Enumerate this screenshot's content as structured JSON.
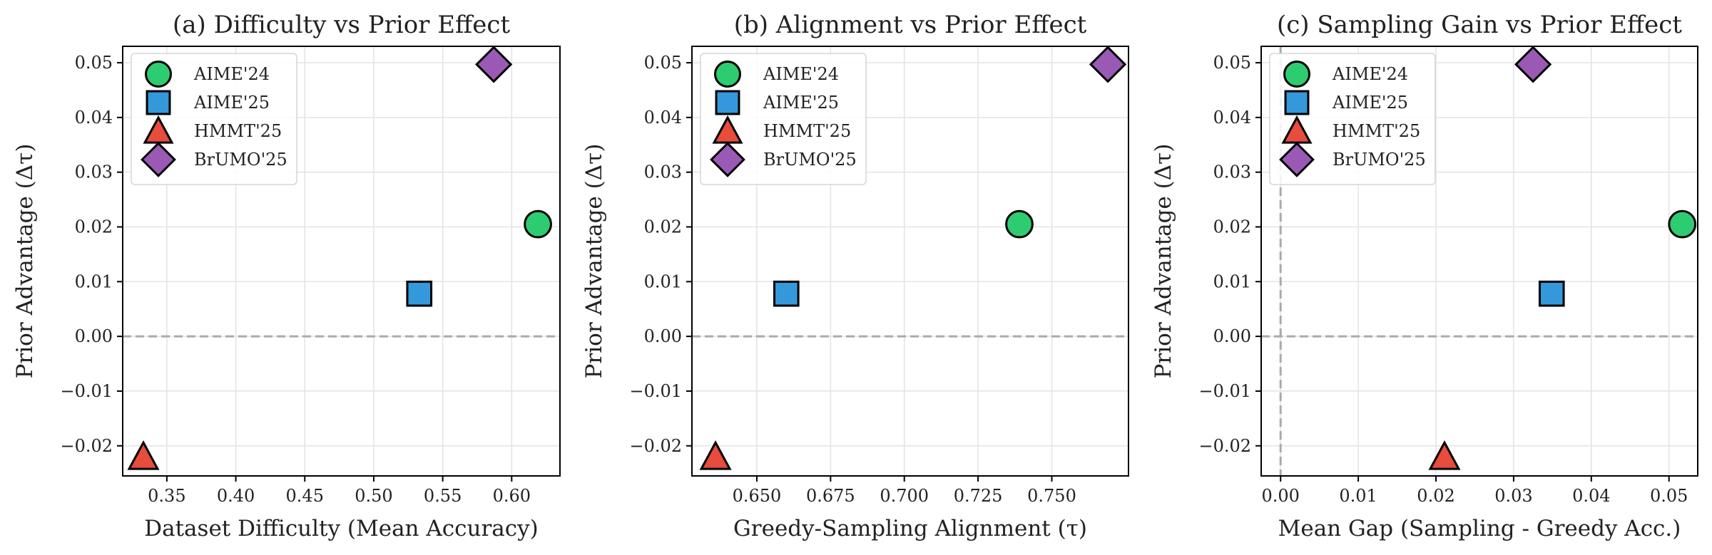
{
  "legend": {
    "position": "upper-left",
    "entries": [
      {
        "label": "AIME'24",
        "color": "#2ecc71",
        "marker": "circle"
      },
      {
        "label": "AIME'25",
        "color": "#3498db",
        "marker": "square"
      },
      {
        "label": "HMMT'25",
        "color": "#e74c3c",
        "marker": "triangle"
      },
      {
        "label": "BrUMO'25",
        "color": "#9b59b6",
        "marker": "diamond"
      }
    ]
  },
  "chart_data": [
    {
      "type": "scatter",
      "title": "(a) Difficulty vs Prior Effect",
      "xlabel": "Dataset Difficulty (Mean Accuracy)",
      "ylabel": "Prior Advantage (Δτ)",
      "xlim": [
        0.318,
        0.635
      ],
      "ylim": [
        -0.0255,
        0.053
      ],
      "xticks": [
        "0.35",
        "0.40",
        "0.45",
        "0.50",
        "0.55",
        "0.60"
      ],
      "yticks": [
        "−0.02",
        "−0.01",
        "0.00",
        "0.01",
        "0.02",
        "0.03",
        "0.04",
        "0.05"
      ],
      "grid": true,
      "hline": 0,
      "points": [
        {
          "series": "AIME'24",
          "x": 0.619,
          "y": 0.0205
        },
        {
          "series": "AIME'25",
          "x": 0.533,
          "y": 0.0078
        },
        {
          "series": "HMMT'25",
          "x": 0.333,
          "y": -0.022
        },
        {
          "series": "BrUMO'25",
          "x": 0.587,
          "y": 0.0497
        }
      ]
    },
    {
      "type": "scatter",
      "title": "(b) Alignment vs Prior Effect",
      "xlabel": "Greedy-Sampling Alignment (τ)",
      "ylabel": "Prior Advantage (Δτ)",
      "xlim": [
        0.628,
        0.776
      ],
      "ylim": [
        -0.0255,
        0.053
      ],
      "xticks": [
        "0.650",
        "0.675",
        "0.700",
        "0.725",
        "0.750"
      ],
      "yticks": [
        "−0.02",
        "−0.01",
        "0.00",
        "0.01",
        "0.02",
        "0.03",
        "0.04",
        "0.05"
      ],
      "grid": true,
      "hline": 0,
      "points": [
        {
          "series": "AIME'24",
          "x": 0.739,
          "y": 0.0205
        },
        {
          "series": "AIME'25",
          "x": 0.66,
          "y": 0.0078
        },
        {
          "series": "HMMT'25",
          "x": 0.636,
          "y": -0.022
        },
        {
          "series": "BrUMO'25",
          "x": 0.769,
          "y": 0.0497
        }
      ]
    },
    {
      "type": "scatter",
      "title": "(c) Sampling Gain vs Prior Effect",
      "xlabel": "Mean Gap (Sampling - Greedy Acc.)",
      "ylabel": "Prior Advantage (Δτ)",
      "xlim": [
        -0.0025,
        0.0537
      ],
      "ylim": [
        -0.0255,
        0.053
      ],
      "xticks": [
        "0.00",
        "0.01",
        "0.02",
        "0.03",
        "0.04",
        "0.05"
      ],
      "yticks": [
        "−0.02",
        "−0.01",
        "0.00",
        "0.01",
        "0.02",
        "0.03",
        "0.04",
        "0.05"
      ],
      "grid": true,
      "hline": 0,
      "vline": 0,
      "points": [
        {
          "series": "AIME'24",
          "x": 0.0517,
          "y": 0.0205
        },
        {
          "series": "AIME'25",
          "x": 0.0349,
          "y": 0.0078
        },
        {
          "series": "HMMT'25",
          "x": 0.0211,
          "y": -0.022
        },
        {
          "series": "BrUMO'25",
          "x": 0.0325,
          "y": 0.0497
        }
      ]
    }
  ]
}
